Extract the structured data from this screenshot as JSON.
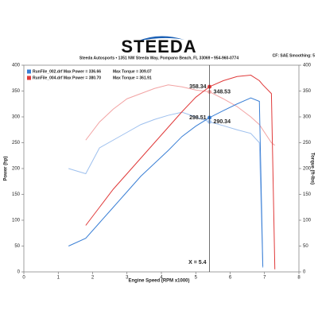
{
  "chart_data": {
    "type": "line",
    "title": "STEEDA",
    "subtitle": "Steeda Autosports • 1351 NW Steeda Way, Pompano Beach, FL 33069 • 954-960-0774",
    "settings_text": "CF: SAE  Smoothing: 5",
    "x_label": "Engine Speed (RPM x1000)",
    "y_label": "Power (hp)",
    "y2_label": "Torque (ft-lbs)",
    "xlim": [
      0,
      8
    ],
    "xticks": [
      0,
      1,
      2,
      3,
      4,
      5,
      6,
      7,
      8
    ],
    "ylim": [
      0,
      400
    ],
    "yticks": [
      0,
      50,
      100,
      150,
      200,
      250,
      300,
      350,
      400
    ],
    "y2lim": [
      0,
      400
    ],
    "y2ticks": [
      0,
      50,
      100,
      150,
      200,
      250,
      300,
      350,
      400
    ],
    "legend": [
      {
        "text": "RunFile_002.drf Max Power = 336.66",
        "torque": "Max Torque = 309.07",
        "color": "#3a7fd5"
      },
      {
        "text": "RunFile_004.drf Max Power = 380.70",
        "torque": "Max Torque = 361.91",
        "color": "#e03a3a"
      }
    ],
    "cursor": {
      "x": 5.4,
      "label": "X = 5.4"
    },
    "x": [
      1.3,
      1.8,
      2.2,
      2.6,
      3.0,
      3.4,
      3.8,
      4.2,
      4.6,
      5.0,
      5.4,
      5.8,
      6.2,
      6.6,
      6.85,
      6.95,
      7.2,
      7.3
    ],
    "series": [
      {
        "color": "#9ec0ee",
        "axis": "y2",
        "values": [
          200,
          190,
          240,
          255,
          270,
          285,
          295,
          303,
          309.07,
          300,
          290.34,
          283,
          275,
          268,
          250,
          8,
          null,
          null
        ],
        "value_labels": [
          null,
          null,
          null,
          null,
          null,
          null,
          null,
          null,
          null,
          null,
          "290.34",
          null,
          null,
          null,
          null,
          null,
          null,
          null
        ]
      },
      {
        "color": "#f2a3a3",
        "axis": "y2",
        "values": [
          null,
          255,
          290,
          315,
          335,
          345,
          355,
          361.91,
          358,
          352,
          348.53,
          335,
          320,
          300,
          285,
          275,
          250,
          245
        ],
        "value_labels": [
          null,
          null,
          null,
          null,
          null,
          null,
          null,
          null,
          null,
          null,
          "348.53",
          null,
          null,
          null,
          null,
          null,
          null,
          null
        ]
      },
      {
        "color": "#3a7fd5",
        "values": [
          50,
          65,
          95,
          125,
          155,
          185,
          210,
          235,
          262,
          282,
          298.51,
          312,
          325,
          336.66,
          330,
          10,
          null,
          null
        ],
        "value_labels": [
          null,
          null,
          null,
          null,
          null,
          null,
          null,
          null,
          null,
          null,
          "298.51",
          null,
          null,
          null,
          null,
          null,
          null,
          null
        ]
      },
      {
        "color": "#e03a3a",
        "values": [
          null,
          90,
          125,
          160,
          190,
          220,
          250,
          280,
          310,
          338,
          358.34,
          370,
          378,
          380.7,
          370,
          362,
          345,
          5
        ],
        "value_labels": [
          null,
          null,
          null,
          null,
          null,
          null,
          null,
          null,
          null,
          null,
          "358.34",
          null,
          null,
          null,
          null,
          null,
          null,
          null
        ]
      }
    ]
  }
}
